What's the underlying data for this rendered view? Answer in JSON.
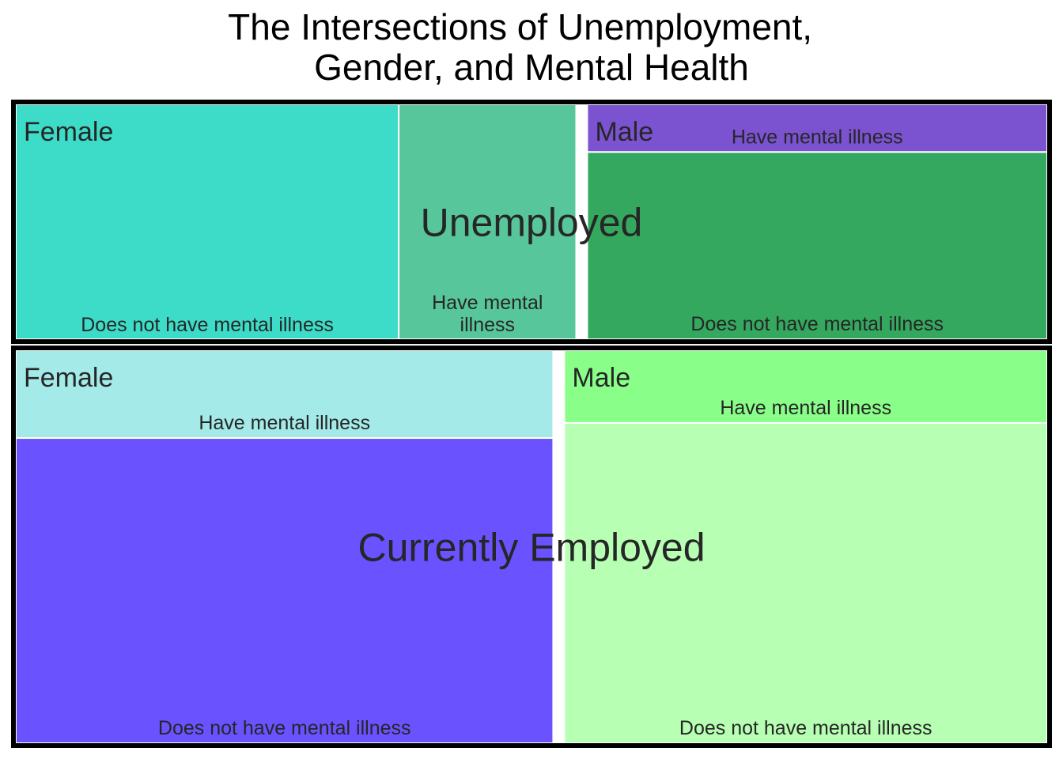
{
  "chart_data": {
    "type": "treemap",
    "title": "The Intersections of Unemployment, Gender, and Mental Health",
    "title_lines": [
      "The Intersections of Unemployment,",
      "Gender, and Mental Health"
    ],
    "groups": [
      {
        "name": "Unemployed",
        "key": "unemployed",
        "children": [
          {
            "name": "Female",
            "key": "female",
            "children": [
              {
                "name": "Does not have mental illness",
                "key": "no-mi",
                "label_lines": [
                  "Does not have mental illness"
                ],
                "value": 16.4,
                "color": "#3CDCC8"
              },
              {
                "name": "Have mental illness",
                "key": "mi",
                "label_lines": [
                  "Have mental",
                  "illness"
                ],
                "value": 7.6,
                "color": "#57C69B"
              }
            ]
          },
          {
            "name": "Male",
            "key": "male",
            "children": [
              {
                "name": "Have mental illness",
                "key": "mi",
                "label_lines": [
                  "Have mental illness"
                ],
                "value": 4.0,
                "color": "#7B52D0"
              },
              {
                "name": "Does not have mental illness",
                "key": "no-mi",
                "label_lines": [
                  "Does not have mental illness"
                ],
                "value": 15.7,
                "color": "#34A85E"
              }
            ]
          }
        ]
      },
      {
        "name": "Currently Employed",
        "key": "employed",
        "children": [
          {
            "name": "Female",
            "key": "female",
            "children": [
              {
                "name": "Have mental illness",
                "key": "mi",
                "label_lines": [
                  "Have mental illness"
                ],
                "value": 8.6,
                "color": "#A3EAE8"
              },
              {
                "name": "Does not have mental illness",
                "key": "no-mi",
                "label_lines": [
                  "Does not have mental illness"
                ],
                "value": 29.9,
                "color": "#6A52FF"
              }
            ]
          },
          {
            "name": "Male",
            "key": "male",
            "children": [
              {
                "name": "Have mental illness",
                "key": "mi",
                "label_lines": [
                  "Have mental illness"
                ],
                "value": 6.4,
                "color": "#89FF89"
              },
              {
                "name": "Does not have mental illness",
                "key": "no-mi",
                "label_lines": [
                  "Does not have mental illness"
                ],
                "value": 28.2,
                "color": "#B6FFB3"
              }
            ]
          }
        ]
      }
    ]
  }
}
